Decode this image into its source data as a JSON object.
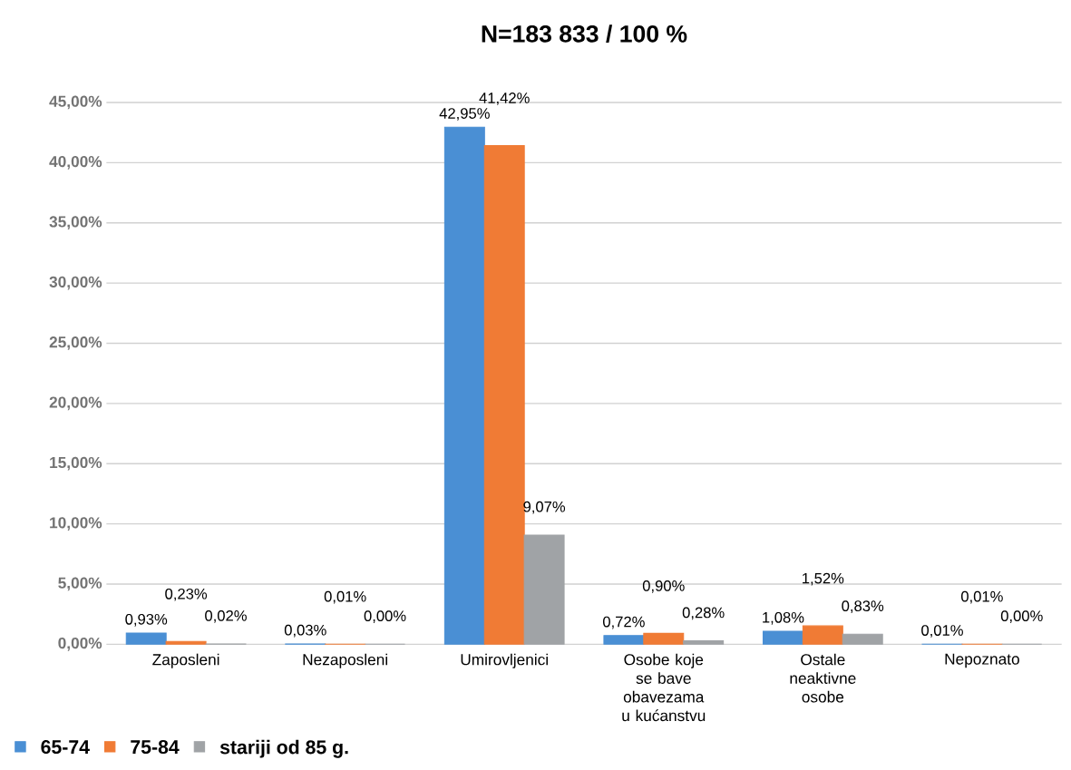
{
  "chart_data": {
    "type": "bar",
    "title": "N=183 833 / 100 %",
    "categories": [
      "Zaposleni",
      "Nezaposleni",
      "Umirovljenici",
      "Osobe koje se bave obavezama u kućanstvu",
      "Ostale neaktivne osobe",
      "Nepoznato"
    ],
    "series": [
      {
        "name": "65-74",
        "color": "#4a8fd4",
        "values": [
          0.93,
          0.03,
          42.95,
          0.72,
          1.08,
          0.01
        ],
        "value_labels": [
          "0,93%",
          "0,03%",
          "42,95%",
          "0,72%",
          "1,08%",
          "0,01%"
        ]
      },
      {
        "name": "75-84",
        "color": "#f07b35",
        "values": [
          0.23,
          0.01,
          41.42,
          0.9,
          1.52,
          0.01
        ],
        "value_labels": [
          "0,23%",
          "0,01%",
          "41,42%",
          "0,90%",
          "1,52%",
          "0,01%"
        ]
      },
      {
        "name": "stariji od 85 g.",
        "color": "#a0a3a6",
        "values": [
          0.02,
          0.0,
          9.07,
          0.28,
          0.83,
          0.0
        ],
        "value_labels": [
          "0,02%",
          "0,00%",
          "9,07%",
          "0,28%",
          "0,83%",
          "0,00%"
        ]
      }
    ],
    "ylim": [
      0,
      45
    ],
    "yticks": [
      {
        "value": 0,
        "label": "0,00%"
      },
      {
        "value": 5,
        "label": "5,00%"
      },
      {
        "value": 10,
        "label": "10,00%"
      },
      {
        "value": 15,
        "label": "15,00%"
      },
      {
        "value": 20,
        "label": "20,00%"
      },
      {
        "value": 25,
        "label": "25,00%"
      },
      {
        "value": 30,
        "label": "30,00%"
      },
      {
        "value": 35,
        "label": "35,00%"
      },
      {
        "value": 40,
        "label": "40,00%"
      },
      {
        "value": 45,
        "label": "45,00%"
      }
    ],
    "grid": "y",
    "legend": "bottom left"
  }
}
